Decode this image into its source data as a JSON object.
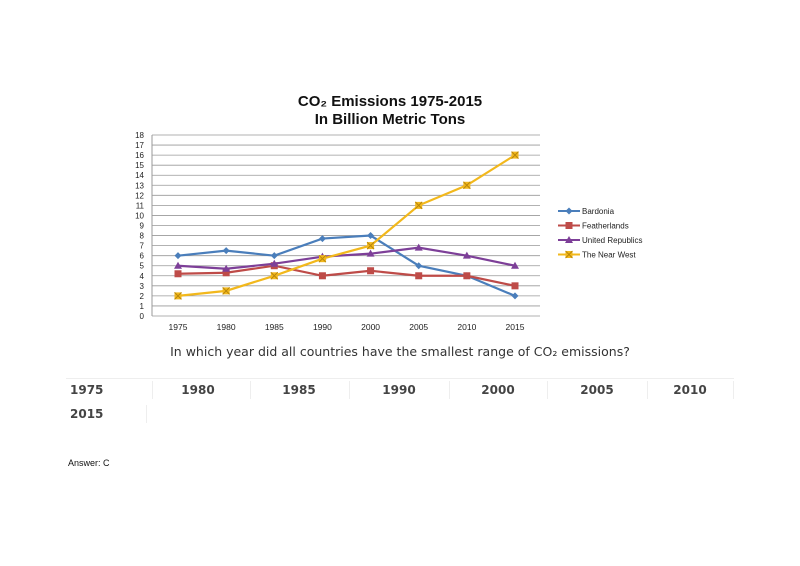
{
  "chart_data": {
    "type": "line",
    "title": "CO₂ Emissions 1975-2015",
    "subtitle": "In Billion Metric Tons",
    "categories": [
      "1975",
      "1980",
      "1985",
      "1990",
      "2000",
      "2005",
      "2010",
      "2015"
    ],
    "ylim": [
      0,
      18
    ],
    "yticks": [
      0,
      1,
      2,
      3,
      4,
      5,
      6,
      7,
      8,
      9,
      10,
      11,
      12,
      13,
      14,
      15,
      16,
      17,
      18
    ],
    "grid": true,
    "legend": "right",
    "series": [
      {
        "name": "Bardonia",
        "color": "#4a7ebb",
        "marker": "diamond",
        "values": [
          6,
          6.5,
          6,
          7.7,
          8,
          5,
          4,
          2
        ]
      },
      {
        "name": "Featherlands",
        "color": "#be4b48",
        "marker": "square",
        "values": [
          4.2,
          4.3,
          5,
          4,
          4.5,
          4,
          4,
          3
        ]
      },
      {
        "name": "United Republics",
        "color": "#7d3f98",
        "marker": "triangle",
        "values": [
          5,
          4.7,
          5.2,
          5.9,
          6.2,
          6.8,
          6,
          5
        ]
      },
      {
        "name": "The Near West",
        "color": "#f2b81c",
        "marker": "x",
        "values": [
          2,
          2.5,
          4,
          5.7,
          7,
          11,
          13,
          16
        ]
      }
    ]
  },
  "question": "In which year did all countries have the smallest range of CO₂ emissions?",
  "options": [
    "1975",
    "1980",
    "1985",
    "1990",
    "2000",
    "2005",
    "2010",
    "2015"
  ],
  "answer": "Answer:  C"
}
